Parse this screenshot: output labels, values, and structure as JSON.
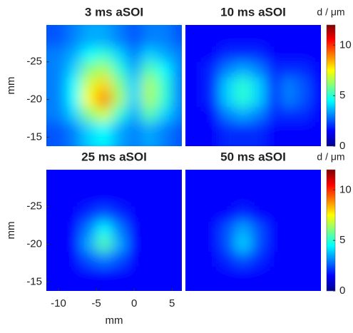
{
  "chart_data": [
    {
      "type": "heatmap",
      "title": "3 ms aSOI",
      "ylabel": "mm",
      "x": [
        -10,
        -8,
        -6,
        -4,
        -2,
        0,
        2,
        4,
        6
      ],
      "y": [
        -28,
        -26,
        -24,
        -22,
        -20,
        -18,
        -16
      ],
      "z": [
        [
          2.5,
          3,
          3.5,
          3.5,
          3,
          2.5,
          3,
          3,
          2.5
        ],
        [
          3,
          3.5,
          4.5,
          5,
          4,
          3,
          4,
          3.5,
          3
        ],
        [
          3,
          4,
          6,
          6.5,
          5,
          3.5,
          5.5,
          4.5,
          3
        ],
        [
          3,
          4.5,
          7,
          8,
          6,
          4,
          6.5,
          5,
          3
        ],
        [
          3,
          4.5,
          7.5,
          9,
          6.5,
          4,
          6.5,
          5,
          3
        ],
        [
          3,
          4,
          6,
          7,
          5,
          3.5,
          5.5,
          4,
          3
        ],
        [
          2.5,
          3,
          4,
          4.5,
          3.5,
          3,
          3.5,
          3,
          2.5
        ]
      ],
      "xlim": [
        -11.6,
        6.3
      ],
      "ylim": [
        -13.8,
        -29.9
      ],
      "yticks": [
        -25,
        -20,
        -15
      ],
      "zlim": [
        0,
        12
      ]
    },
    {
      "type": "heatmap",
      "title": "10 ms aSOI",
      "x": [
        -10,
        -8,
        -6,
        -4,
        -2,
        0,
        2,
        4,
        6
      ],
      "y": [
        -28,
        -26,
        -24,
        -22,
        -20,
        -18,
        -16
      ],
      "z": [
        [
          1.5,
          1.5,
          1.5,
          1.5,
          1.5,
          1.5,
          1.5,
          1.5,
          1.5
        ],
        [
          1.5,
          1.5,
          2,
          2,
          2,
          1.5,
          1.5,
          1.5,
          1.5
        ],
        [
          1.5,
          2,
          3,
          3.5,
          3,
          2,
          2,
          2,
          1.5
        ],
        [
          1.5,
          2,
          4,
          5,
          4,
          2,
          3,
          2.5,
          1.5
        ],
        [
          1.5,
          2,
          4,
          5,
          4,
          2,
          3,
          2.5,
          1.5
        ],
        [
          1.5,
          1.5,
          3,
          3.5,
          3,
          2,
          2,
          2,
          1.5
        ],
        [
          1.5,
          1.5,
          2,
          2,
          2,
          1.5,
          1.5,
          1.5,
          1.5
        ]
      ],
      "xlim": [
        -11.6,
        6.3
      ],
      "ylim": [
        -13.8,
        -29.9
      ],
      "zlim": [
        0,
        12
      ],
      "colorbar": {
        "label": "d / μm",
        "ticks": [
          0,
          5,
          10
        ]
      }
    },
    {
      "type": "heatmap",
      "title": "25 ms aSOI",
      "ylabel": "mm",
      "xlabel": "mm",
      "x": [
        -10,
        -8,
        -6,
        -4,
        -2,
        0,
        2,
        4,
        6
      ],
      "y": [
        -28,
        -26,
        -24,
        -22,
        -20,
        -18,
        -16
      ],
      "z": [
        [
          1.5,
          1.5,
          1.5,
          1.5,
          1.5,
          1.5,
          1.5,
          1.5,
          1.5
        ],
        [
          1.5,
          1.5,
          1.5,
          1.5,
          1.5,
          1.5,
          1.5,
          1.5,
          1.5
        ],
        [
          1.5,
          1.5,
          2,
          2.5,
          2,
          1.5,
          1.5,
          1.5,
          1.5
        ],
        [
          1.5,
          1.5,
          3,
          4.5,
          3,
          1.5,
          1.5,
          1.5,
          1.5
        ],
        [
          1.5,
          1.5,
          3.5,
          5.5,
          3.5,
          1.5,
          1.5,
          1.5,
          1.5
        ],
        [
          1.5,
          1.5,
          2.5,
          3,
          2.5,
          1.5,
          1.5,
          1.5,
          1.5
        ],
        [
          1.5,
          1.5,
          1.5,
          1.5,
          1.5,
          1.5,
          1.5,
          1.5,
          1.5
        ]
      ],
      "xlim": [
        -11.6,
        6.3
      ],
      "ylim": [
        -13.8,
        -29.9
      ],
      "xticks": [
        -10,
        -5,
        0,
        5
      ],
      "yticks": [
        -25,
        -20,
        -15
      ],
      "zlim": [
        0,
        12
      ]
    },
    {
      "type": "heatmap",
      "title": "50 ms aSOI",
      "x": [
        -10,
        -8,
        -6,
        -4,
        -2,
        0,
        2,
        4,
        6
      ],
      "y": [
        -28,
        -26,
        -24,
        -22,
        -20,
        -18,
        -16
      ],
      "z": [
        [
          1.5,
          1.5,
          1.5,
          1.5,
          1.5,
          1.5,
          1.5,
          1.5,
          1.5
        ],
        [
          1.5,
          1.5,
          1.5,
          1.5,
          1.5,
          1.5,
          1.5,
          1.5,
          1.5
        ],
        [
          1.5,
          1.5,
          1.5,
          2,
          1.5,
          1.5,
          1.5,
          1.5,
          1.5
        ],
        [
          1.5,
          1.5,
          2.5,
          3.5,
          2.5,
          1.5,
          1.5,
          1.5,
          1.5
        ],
        [
          1.5,
          1.5,
          2.5,
          4,
          2.5,
          1.5,
          1.5,
          1.5,
          1.5
        ],
        [
          1.5,
          1.5,
          2,
          2.5,
          2,
          1.5,
          1.5,
          1.5,
          1.5
        ],
        [
          1.5,
          1.5,
          1.5,
          1.5,
          1.5,
          1.5,
          1.5,
          1.5,
          1.5
        ]
      ],
      "xlim": [
        -11.6,
        6.3
      ],
      "ylim": [
        -13.8,
        -29.9
      ],
      "zlim": [
        0,
        12
      ],
      "colorbar": {
        "label": "d / μm",
        "ticks": [
          0,
          5,
          10
        ]
      }
    }
  ]
}
